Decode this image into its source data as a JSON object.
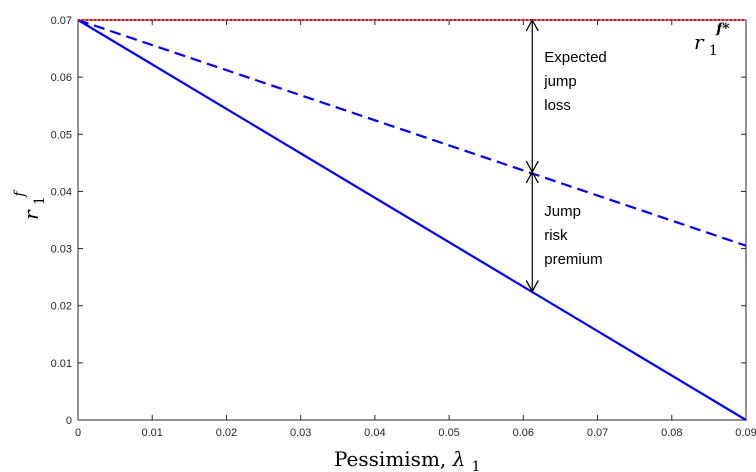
{
  "chart_data": {
    "type": "line",
    "xlabel_text": "Pessimism, ",
    "xlabel_symbol": "λ",
    "xlabel_sub": "1",
    "ylabel_base": "r",
    "ylabel_sup": "f",
    "ylabel_sub": "1",
    "xlim": [
      0,
      0.09
    ],
    "ylim": [
      0,
      0.07
    ],
    "x_ticks": [
      "0",
      "0.01",
      "0.02",
      "0.03",
      "0.04",
      "0.05",
      "0.06",
      "0.07",
      "0.08",
      "0.09"
    ],
    "y_ticks": [
      "0",
      "0.01",
      "0.02",
      "0.03",
      "0.04",
      "0.05",
      "0.06",
      "0.07"
    ],
    "grid": false,
    "series": [
      {
        "style": "solid",
        "color": "#0000ff",
        "x": [
          0,
          0.09
        ],
        "y": [
          0.07,
          0.0
        ]
      },
      {
        "style": "dashed",
        "color": "#0000ff",
        "x": [
          0,
          0.09
        ],
        "y": [
          0.07,
          0.0305
        ]
      },
      {
        "style": "dotted",
        "color": "#ff0000",
        "x": [
          0,
          0.09
        ],
        "y": [
          0.07,
          0.07
        ]
      }
    ],
    "series_label": {
      "base": "r",
      "sup": "f*",
      "sub": "1"
    },
    "arrows": [
      {
        "x": 0.0612,
        "y_from": 0.07,
        "y_to": 0.0434
      },
      {
        "x": 0.0612,
        "y_from": 0.0434,
        "y_to": 0.0225
      }
    ],
    "annotations": [
      {
        "lines": [
          "Expected",
          "jump",
          "loss"
        ]
      },
      {
        "lines": [
          "Jump",
          "risk",
          "premium"
        ]
      }
    ]
  }
}
